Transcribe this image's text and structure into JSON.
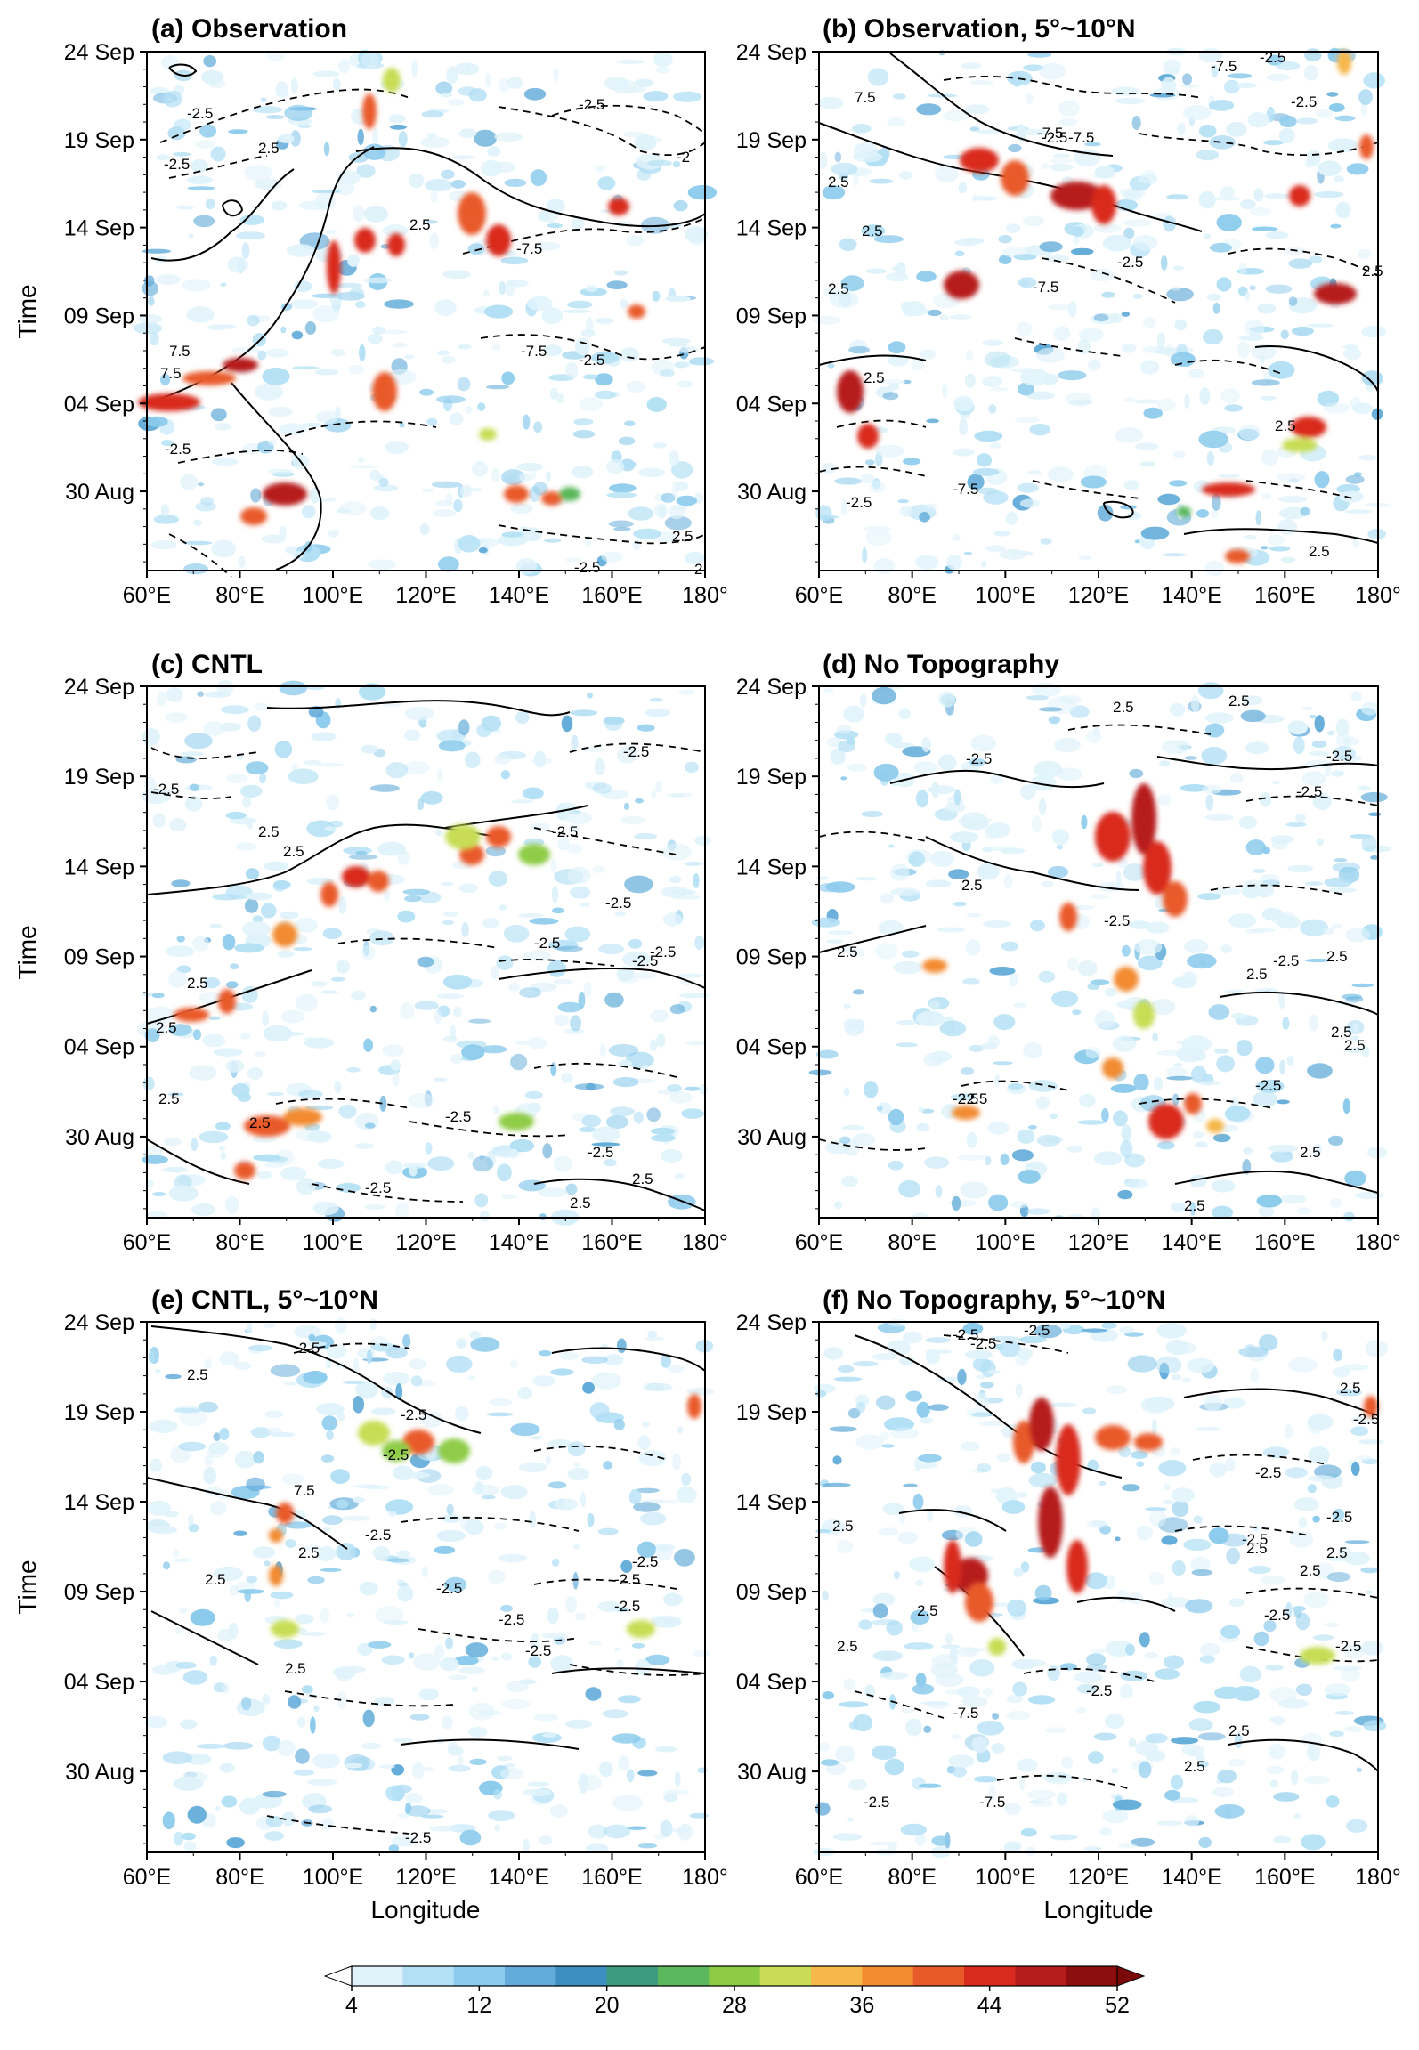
{
  "figure": {
    "panels": [
      {
        "id": "a",
        "title": "(a) Observation"
      },
      {
        "id": "b",
        "title": "(b) Observation, 5°~10°N"
      },
      {
        "id": "c",
        "title": "(c) CNTL"
      },
      {
        "id": "d",
        "title": "(d) No Topography"
      },
      {
        "id": "e",
        "title": "(e) CNTL,  5°~10°N"
      },
      {
        "id": "f",
        "title": "(f) No Topography, 5°~10°N"
      }
    ],
    "ylabel": "Time",
    "xlabel": "Longitude",
    "x_ticks": [
      "60°E",
      "80°E",
      "100°E",
      "120°E",
      "140°E",
      "160°E",
      "180°"
    ],
    "y_ticks": [
      "24 Sep",
      "19 Sep",
      "14 Sep",
      "09 Sep",
      "04 Sep",
      "30 Aug"
    ],
    "colorbar": {
      "ticks": [
        "4",
        "12",
        "20",
        "28",
        "36",
        "44",
        "52"
      ],
      "colors": [
        "#e0f3fb",
        "#b3e0f5",
        "#8ccbec",
        "#63acd9",
        "#3d8fc2",
        "#3b9c7e",
        "#5cb85c",
        "#8fcc46",
        "#c8dd55",
        "#f7b84b",
        "#f28b30",
        "#e95a2a",
        "#d92b1f",
        "#b71c1c",
        "#8b0d0d"
      ]
    }
  },
  "chart_data": [
    {
      "type": "heatmap",
      "panel": "a",
      "title": "(a) Observation",
      "x": [
        "60°E",
        "80°E",
        "100°E",
        "120°E",
        "140°E",
        "160°E",
        "180°"
      ],
      "y": [
        "24 Sep",
        "19 Sep",
        "14 Sep",
        "09 Sep",
        "04 Sep",
        "30 Aug"
      ],
      "ylabel": "Time",
      "xlabel": "",
      "contour_labels": [
        "7.5",
        "7.5",
        "-2.5",
        "-2.5",
        "-2.5",
        "2.5",
        "-7.5",
        "-7.5",
        "-2.5",
        "2.5",
        "-2.5",
        "-2",
        "2.5",
        "2",
        "-2.5"
      ]
    },
    {
      "type": "heatmap",
      "panel": "b",
      "title": "(b) Observation, 5°~10°N",
      "x": [
        "60°E",
        "80°E",
        "100°E",
        "120°E",
        "140°E",
        "160°E",
        "180°"
      ],
      "y": [
        "24 Sep",
        "19 Sep",
        "14 Sep",
        "09 Sep",
        "04 Sep",
        "30 Aug"
      ],
      "ylabel": "",
      "xlabel": "",
      "contour_labels": [
        "7.5",
        "-7.5",
        "-2.5",
        "-2.5",
        "-7.5",
        "-2.5",
        "-7.5",
        "2.5",
        "2.5",
        "2.5",
        "2.5",
        "-7.5",
        "-2.5",
        "2.5",
        "2.5",
        "-2.5",
        "-7.5",
        "2.5"
      ]
    },
    {
      "type": "heatmap",
      "panel": "c",
      "title": "(c) CNTL",
      "x": [
        "60°E",
        "80°E",
        "100°E",
        "120°E",
        "140°E",
        "160°E",
        "180°"
      ],
      "y": [
        "24 Sep",
        "19 Sep",
        "14 Sep",
        "09 Sep",
        "04 Sep",
        "30 Aug"
      ],
      "ylabel": "Time",
      "xlabel": "",
      "contour_labels": [
        "-2.5",
        "2.5",
        "2.5",
        "-2.5",
        "-2.5",
        "2.5",
        "-2.5",
        "-2.5",
        "-2.5",
        "2.5",
        "-2.5",
        "2.5",
        "2.5",
        "2.5",
        "-2.5",
        "-2.5",
        "2.5",
        "-2.5"
      ]
    },
    {
      "type": "heatmap",
      "panel": "d",
      "title": "(d) No Topography",
      "x": [
        "60°E",
        "80°E",
        "100°E",
        "120°E",
        "140°E",
        "160°E",
        "180°"
      ],
      "y": [
        "24 Sep",
        "19 Sep",
        "14 Sep",
        "09 Sep",
        "04 Sep",
        "30 Aug"
      ],
      "ylabel": "",
      "xlabel": "",
      "contour_labels": [
        "2.5",
        "2.5",
        "-2.5",
        "-2.5",
        "-2.5",
        "2.5",
        "-2.5",
        "2.5",
        "-2.5",
        "2.5",
        "2.5",
        "-2.5",
        "2.5",
        "2.5",
        "-2.5",
        "2.5",
        "-2.5",
        "2.5"
      ]
    },
    {
      "type": "heatmap",
      "panel": "e",
      "title": "(e) CNTL,  5°~10°N",
      "x": [
        "60°E",
        "80°E",
        "100°E",
        "120°E",
        "140°E",
        "160°E",
        "180°"
      ],
      "y": [
        "24 Sep",
        "19 Sep",
        "14 Sep",
        "09 Sep",
        "04 Sep",
        "30 Aug"
      ],
      "ylabel": "Time",
      "xlabel": "Longitude",
      "contour_labels": [
        "-2.5",
        "2.5",
        "-2.5",
        "-2.5",
        "7.5",
        "2.5",
        "2.5",
        "-2.5",
        "-2.5",
        "-2.5",
        "-2.5",
        "2.5",
        "-2.5",
        "-2.5",
        "-2.5",
        "-2.5"
      ]
    },
    {
      "type": "heatmap",
      "panel": "f",
      "title": "(f) No Topography, 5°~10°N",
      "x": [
        "60°E",
        "80°E",
        "100°E",
        "120°E",
        "140°E",
        "160°E",
        "180°"
      ],
      "y": [
        "24 Sep",
        "19 Sep",
        "14 Sep",
        "09 Sep",
        "04 Sep",
        "30 Aug"
      ],
      "ylabel": "",
      "xlabel": "Longitude",
      "contour_labels": [
        "-2.5",
        "-2.5",
        "2.5",
        "2.5",
        "-2.5",
        "-2.5",
        "2.5",
        "2.5",
        "-2.5",
        "2.5",
        "-2.5",
        "-2.5",
        "-7.5",
        "2.5",
        "-2.5",
        "2.5",
        "2.5",
        "-7.5",
        "-2.5",
        "2.5",
        "-2.5",
        "-2.5"
      ]
    }
  ]
}
